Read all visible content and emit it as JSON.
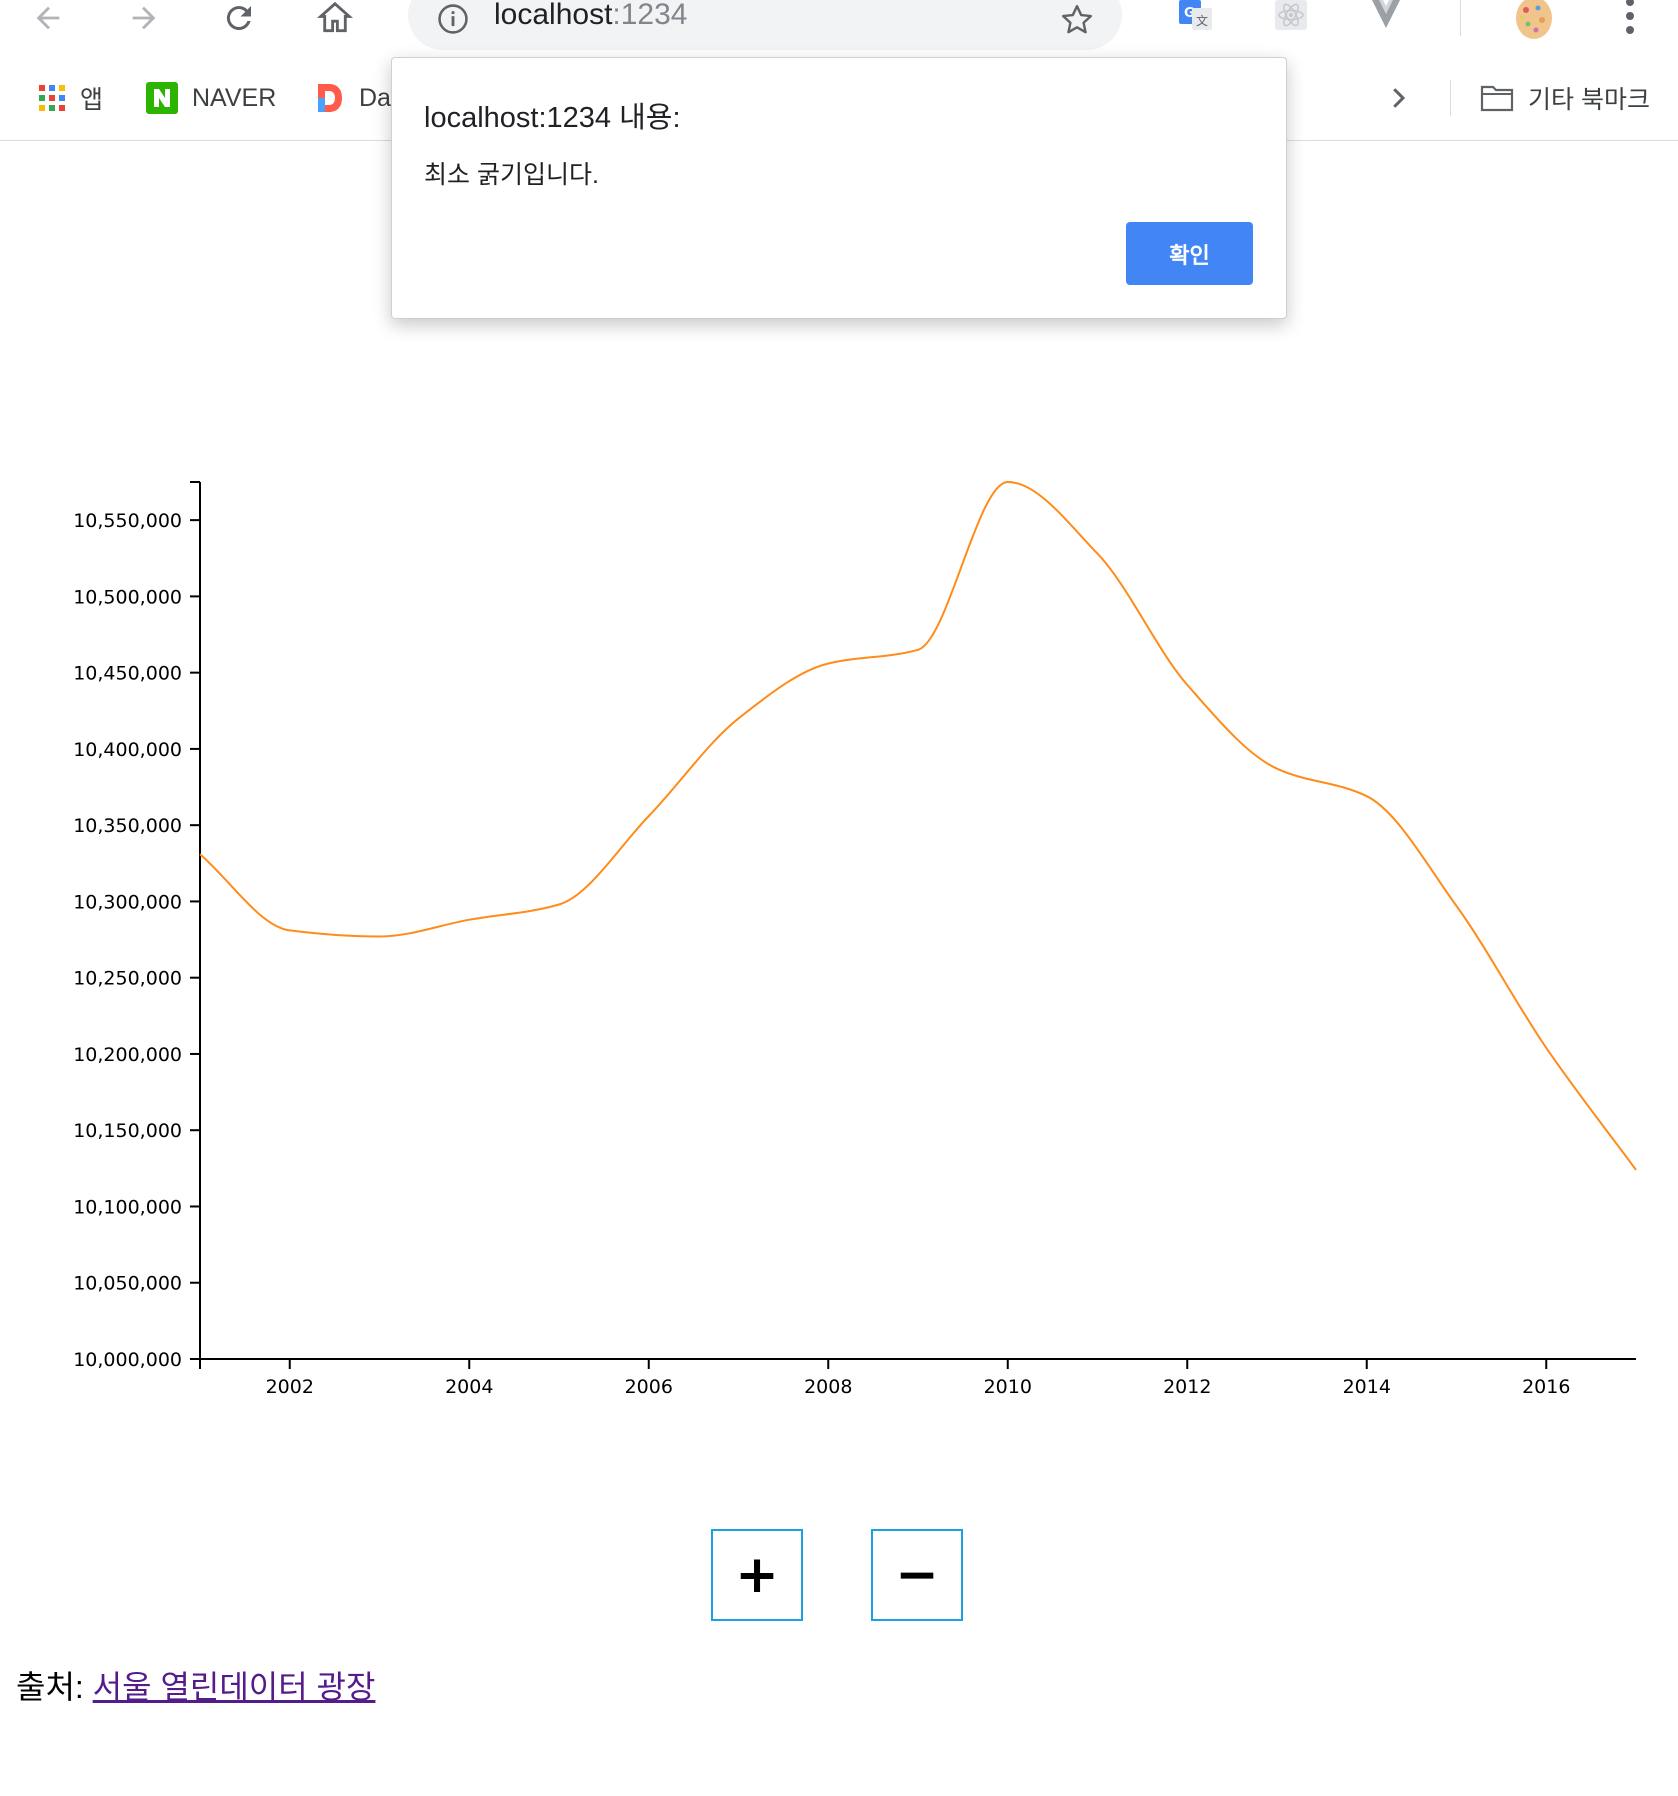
{
  "browser": {
    "url_host": "localhost",
    "url_port": ":1234",
    "bookmarks": [
      {
        "label": "앱",
        "icon": "apps-grid-icon"
      },
      {
        "label": "NAVER",
        "icon": "naver-icon"
      },
      {
        "label": "Da",
        "icon": "daum-icon"
      }
    ],
    "other_bookmarks_label": "기타 북마크"
  },
  "dialog": {
    "title": "localhost:1234 내용:",
    "message": "최소 굵기입니다.",
    "ok_label": "확인"
  },
  "controls": {
    "plus_label": "+",
    "minus_label": "−"
  },
  "source": {
    "prefix": "출처: ",
    "link_label": "서울 열린데이터 광장"
  },
  "colors": {
    "line": "#ff8c1a",
    "button_border": "#1ba1e2",
    "dialog_button": "#4285f4"
  },
  "chart_data": {
    "type": "line",
    "title": "",
    "xlabel": "",
    "ylabel": "",
    "x": [
      2001,
      2002,
      2003,
      2004,
      2005,
      2006,
      2007,
      2008,
      2009,
      2010,
      2011,
      2012,
      2013,
      2014,
      2015,
      2016,
      2017
    ],
    "series": [
      {
        "values": [
          10331000,
          10281000,
          10277000,
          10288000,
          10298000,
          10356000,
          10420000,
          10456000,
          10465000,
          10575000,
          10528000,
          10442000,
          10387000,
          10369000,
          10297000,
          10204000,
          10124000
        ]
      }
    ],
    "xlim": [
      2001,
      2017
    ],
    "ylim": [
      10000000,
      10575000
    ],
    "x_ticks": [
      "2002",
      "2004",
      "2006",
      "2008",
      "2010",
      "2012",
      "2014",
      "2016"
    ],
    "y_ticks": [
      "10,000,000",
      "10,050,000",
      "10,100,000",
      "10,150,000",
      "10,200,000",
      "10,250,000",
      "10,300,000",
      "10,350,000",
      "10,400,000",
      "10,450,000",
      "10,500,000",
      "10,550,000"
    ],
    "grid": false,
    "legend": "none"
  }
}
